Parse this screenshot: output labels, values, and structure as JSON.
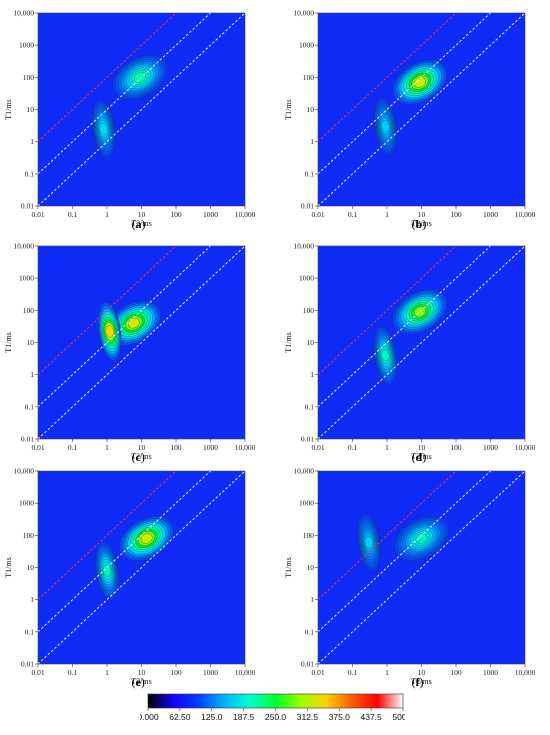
{
  "chart_data": [
    {
      "type": "heatmap",
      "caption": "a",
      "xlabel": "T2/ms",
      "ylabel": "T1/ms",
      "x_ticks": [
        "0.01",
        "0.1",
        "1",
        "10",
        "100",
        "1000",
        "10,000"
      ],
      "y_ticks": [
        "0.01",
        "0.1",
        "1",
        "10",
        "100",
        "1000",
        "10,000"
      ],
      "xlim": [
        0.01,
        10000
      ],
      "ylim": [
        0.01,
        10000
      ],
      "x_scale": "log",
      "y_scale": "log",
      "peaks": [
        {
          "t2": 9,
          "t1": 100,
          "amplitude": 250
        },
        {
          "t2": 0.8,
          "t1": 2.5,
          "amplitude": 190
        }
      ],
      "reference_lines": [
        {
          "t1_over_t2": 100,
          "color": "red"
        },
        {
          "t1_over_t2": 10,
          "color": "white"
        },
        {
          "t1_over_t2": 1,
          "color": "white"
        }
      ]
    },
    {
      "type": "heatmap",
      "caption": "b",
      "xlabel": "T2/ms",
      "ylabel": "T1/ms",
      "x_ticks": [
        "0.01",
        "0.1",
        "1",
        "10",
        "100",
        "1000",
        "10,000"
      ],
      "y_ticks": [
        "0.01",
        "0.1",
        "1",
        "10",
        "100",
        "1000",
        "10,000"
      ],
      "xlim": [
        0.01,
        10000
      ],
      "ylim": [
        0.01,
        10000
      ],
      "x_scale": "log",
      "y_scale": "log",
      "peaks": [
        {
          "t2": 9,
          "t1": 70,
          "amplitude": 400
        },
        {
          "t2": 0.9,
          "t1": 3,
          "amplitude": 170
        }
      ],
      "reference_lines": [
        {
          "t1_over_t2": 100,
          "color": "red"
        },
        {
          "t1_over_t2": 10,
          "color": "white"
        },
        {
          "t1_over_t2": 1,
          "color": "white"
        }
      ]
    },
    {
      "type": "heatmap",
      "caption": "c",
      "xlabel": "T2/ms",
      "ylabel": "T1/ms",
      "x_ticks": [
        "0.01",
        "0.1",
        "1",
        "10",
        "100",
        "1000",
        "10,000"
      ],
      "y_ticks": [
        "0.01",
        "0.1",
        "1",
        "10",
        "100",
        "1000",
        "10,000"
      ],
      "xlim": [
        0.01,
        10000
      ],
      "ylim": [
        0.01,
        10000
      ],
      "x_scale": "log",
      "y_scale": "log",
      "peaks": [
        {
          "t2": 6,
          "t1": 40,
          "amplitude": 400
        },
        {
          "t2": 1.2,
          "t1": 22,
          "amplitude": 420
        }
      ],
      "reference_lines": [
        {
          "t1_over_t2": 100,
          "color": "red"
        },
        {
          "t1_over_t2": 10,
          "color": "white"
        },
        {
          "t1_over_t2": 1,
          "color": "white"
        }
      ]
    },
    {
      "type": "heatmap",
      "caption": "d",
      "xlabel": "T2/ms",
      "ylabel": "T1/ms",
      "x_ticks": [
        "0.01",
        "0.1",
        "1",
        "10",
        "100",
        "1000",
        "10,000"
      ],
      "y_ticks": [
        "0.01",
        "0.1",
        "1",
        "10",
        "100",
        "1000",
        "10,000"
      ],
      "xlim": [
        0.01,
        10000
      ],
      "ylim": [
        0.01,
        10000
      ],
      "x_scale": "log",
      "y_scale": "log",
      "peaks": [
        {
          "t2": 9,
          "t1": 90,
          "amplitude": 360
        },
        {
          "t2": 0.9,
          "t1": 4,
          "amplitude": 230
        }
      ],
      "reference_lines": [
        {
          "t1_over_t2": 100,
          "color": "red"
        },
        {
          "t1_over_t2": 10,
          "color": "white"
        },
        {
          "t1_over_t2": 1,
          "color": "white"
        }
      ]
    },
    {
      "type": "heatmap",
      "caption": "e",
      "xlabel": "T2/ms",
      "ylabel": "T1/ms",
      "x_ticks": [
        "0.01",
        "0.1",
        "1",
        "10",
        "100",
        "1000",
        "10,000"
      ],
      "y_ticks": [
        "0.01",
        "0.1",
        "1",
        "10",
        "100",
        "1000",
        "10,000"
      ],
      "xlim": [
        0.01,
        10000
      ],
      "ylim": [
        0.01,
        10000
      ],
      "x_scale": "log",
      "y_scale": "log",
      "peaks": [
        {
          "t2": 14,
          "t1": 80,
          "amplitude": 400
        },
        {
          "t2": 1,
          "t1": 8,
          "amplitude": 230
        }
      ],
      "reference_lines": [
        {
          "t1_over_t2": 100,
          "color": "red"
        },
        {
          "t1_over_t2": 10,
          "color": "white"
        },
        {
          "t1_over_t2": 1,
          "color": "white"
        }
      ]
    },
    {
      "type": "heatmap",
      "caption": "f",
      "xlabel": "T2/ms",
      "ylabel": "T1/ms",
      "x_ticks": [
        "0.01",
        "0.1",
        "1",
        "10",
        "100",
        "1000",
        "10,000"
      ],
      "y_ticks": [
        "0.01",
        "0.1",
        "1",
        "10",
        "100",
        "1000",
        "10,000"
      ],
      "xlim": [
        0.01,
        10000
      ],
      "ylim": [
        0.01,
        10000
      ],
      "x_scale": "log",
      "y_scale": "log",
      "peaks": [
        {
          "t2": 10,
          "t1": 80,
          "amplitude": 230
        },
        {
          "t2": 0.3,
          "t1": 60,
          "amplitude": 170
        }
      ],
      "reference_lines": [
        {
          "t1_over_t2": 100,
          "color": "red"
        },
        {
          "t1_over_t2": 10,
          "color": "white"
        },
        {
          "t1_over_t2": 1,
          "color": "white"
        }
      ]
    }
  ],
  "colorbar": {
    "ticks": [
      "0.000",
      "62.50",
      "125.0",
      "187.5",
      "250.0",
      "312.5",
      "375.0",
      "437.5",
      "500.0"
    ],
    "range": [
      0,
      500
    ],
    "colors": [
      "#000000",
      "#1400ff",
      "#0040ff",
      "#00b4ff",
      "#00ffd0",
      "#00ff30",
      "#9cff00",
      "#ffd000",
      "#ff5a00",
      "#ff0000",
      "#ffffff"
    ]
  },
  "background_color": "#0f2bf5"
}
